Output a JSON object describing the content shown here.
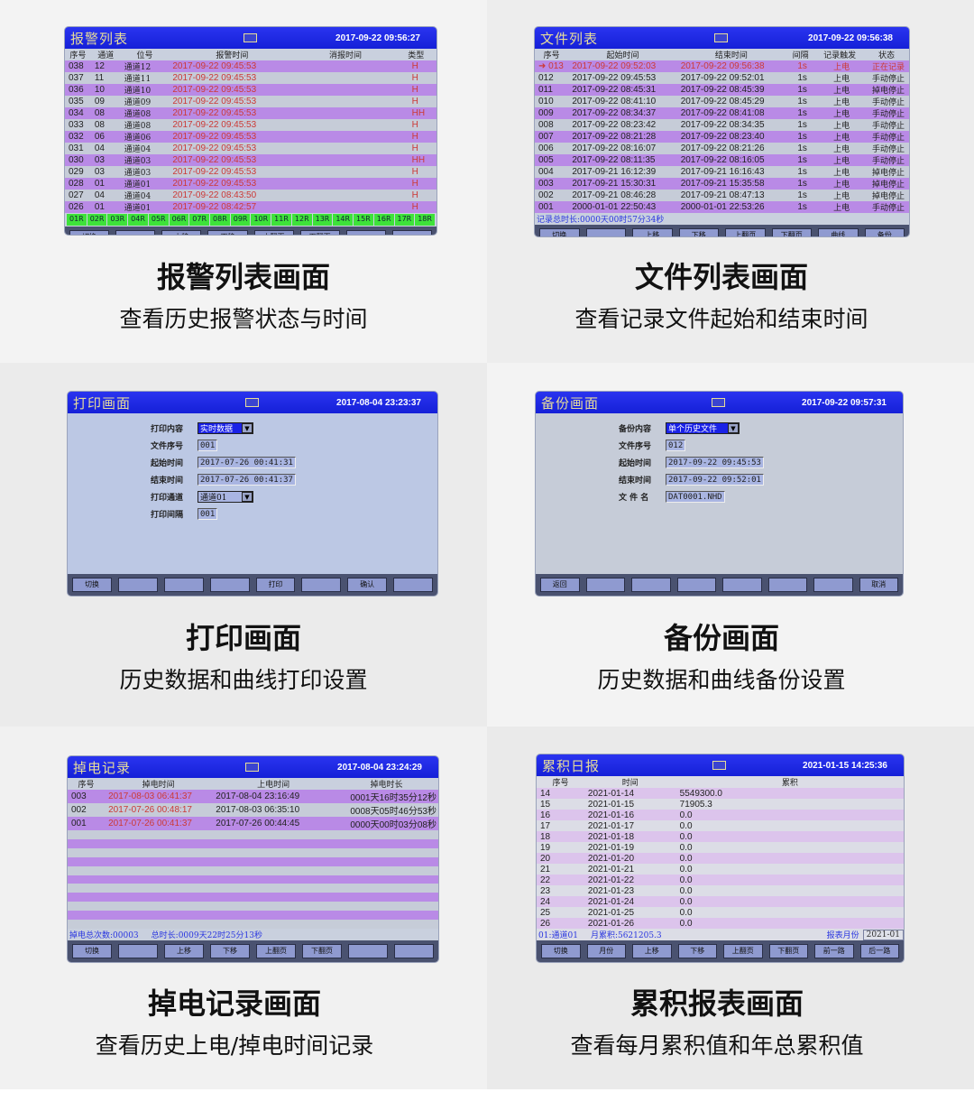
{
  "alarm_list": {
    "title": "报警列表",
    "datetime": "2017-09-22 09:56:27",
    "columns": [
      "序号",
      "通道",
      "位号",
      "报警时间",
      "消报时间",
      "类型"
    ],
    "rows": [
      [
        "038",
        "12",
        "通道12",
        "2017-09-22 09:45:53",
        "",
        "H"
      ],
      [
        "037",
        "11",
        "通道11",
        "2017-09-22 09:45:53",
        "",
        "H"
      ],
      [
        "036",
        "10",
        "通道10",
        "2017-09-22 09:45:53",
        "",
        "H"
      ],
      [
        "035",
        "09",
        "通道09",
        "2017-09-22 09:45:53",
        "",
        "H"
      ],
      [
        "034",
        "08",
        "通道08",
        "2017-09-22 09:45:53",
        "",
        "HH"
      ],
      [
        "033",
        "08",
        "通道08",
        "2017-09-22 09:45:53",
        "",
        "H"
      ],
      [
        "032",
        "06",
        "通道06",
        "2017-09-22 09:45:53",
        "",
        "H"
      ],
      [
        "031",
        "04",
        "通道04",
        "2017-09-22 09:45:53",
        "",
        "H"
      ],
      [
        "030",
        "03",
        "通道03",
        "2017-09-22 09:45:53",
        "",
        "HH"
      ],
      [
        "029",
        "03",
        "通道03",
        "2017-09-22 09:45:53",
        "",
        "H"
      ],
      [
        "028",
        "01",
        "通道01",
        "2017-09-22 09:45:53",
        "",
        "H"
      ],
      [
        "027",
        "04",
        "通道04",
        "2017-09-22 08:43:50",
        "",
        "H"
      ],
      [
        "026",
        "01",
        "通道01",
        "2017-09-22 08:42:57",
        "",
        "H"
      ]
    ],
    "channels": [
      "01R",
      "02R",
      "03R",
      "04R",
      "05R",
      "06R",
      "07R",
      "08R",
      "09R",
      "10R",
      "11R",
      "12R",
      "13R",
      "14R",
      "15R",
      "16R",
      "17R",
      "18R"
    ],
    "channel_color": "#3ee23a",
    "buttons": [
      "切换",
      "",
      "上移",
      "下移",
      "上翻页",
      "下翻页",
      "",
      ""
    ],
    "caption": {
      "title": "报警列表画面",
      "subtitle": "查看历史报警状态与时间"
    }
  },
  "file_list": {
    "title": "文件列表",
    "datetime": "2017-09-22 09:56:38",
    "columns": [
      "序号",
      "起始时间",
      "结束时间",
      "间隔",
      "记录触发",
      "状态"
    ],
    "rows": [
      [
        "➜ 013",
        "2017-09-22 09:52:03",
        "2017-09-22 09:56:38",
        "1s",
        "上电",
        "正在记录"
      ],
      [
        "012",
        "2017-09-22 09:45:53",
        "2017-09-22 09:52:01",
        "1s",
        "上电",
        "手动停止"
      ],
      [
        "011",
        "2017-09-22 08:45:31",
        "2017-09-22 08:45:39",
        "1s",
        "上电",
        "掉电停止"
      ],
      [
        "010",
        "2017-09-22 08:41:10",
        "2017-09-22 08:45:29",
        "1s",
        "上电",
        "手动停止"
      ],
      [
        "009",
        "2017-09-22 08:34:37",
        "2017-09-22 08:41:08",
        "1s",
        "上电",
        "手动停止"
      ],
      [
        "008",
        "2017-09-22 08:23:42",
        "2017-09-22 08:34:35",
        "1s",
        "上电",
        "手动停止"
      ],
      [
        "007",
        "2017-09-22 08:21:28",
        "2017-09-22 08:23:40",
        "1s",
        "上电",
        "手动停止"
      ],
      [
        "006",
        "2017-09-22 08:16:07",
        "2017-09-22 08:21:26",
        "1s",
        "上电",
        "手动停止"
      ],
      [
        "005",
        "2017-09-22 08:11:35",
        "2017-09-22 08:16:05",
        "1s",
        "上电",
        "手动停止"
      ],
      [
        "004",
        "2017-09-21 16:12:39",
        "2017-09-21 16:16:43",
        "1s",
        "上电",
        "掉电停止"
      ],
      [
        "003",
        "2017-09-21 15:30:31",
        "2017-09-21 15:35:58",
        "1s",
        "上电",
        "掉电停止"
      ],
      [
        "002",
        "2017-09-21 08:46:28",
        "2017-09-21 08:47:13",
        "1s",
        "上电",
        "掉电停止"
      ],
      [
        "001",
        "2000-01-01 22:50:43",
        "2000-01-01 22:53:26",
        "1s",
        "上电",
        "手动停止"
      ]
    ],
    "summary": "记录总时长:0000天00时57分34秒",
    "buttons": [
      "切换",
      "",
      "上移",
      "下移",
      "上翻页",
      "下翻页",
      "曲线",
      "备份"
    ],
    "caption": {
      "title": "文件列表画面",
      "subtitle": "查看记录文件起始和结束时间"
    }
  },
  "print": {
    "title": "打印画面",
    "datetime": "2017-08-04 23:23:37",
    "fields": [
      {
        "label": "打印内容",
        "value": "实时数据",
        "type": "select-active"
      },
      {
        "label": "文件序号",
        "value": "001",
        "type": "input"
      },
      {
        "label": "起始时间",
        "value": "2017-07-26 00:41:31",
        "type": "input"
      },
      {
        "label": "结束时间",
        "value": "2017-07-26 00:41:37",
        "type": "input"
      },
      {
        "label": "打印通道",
        "value": "通道01",
        "type": "select"
      },
      {
        "label": "打印间隔",
        "value": "001",
        "type": "input"
      }
    ],
    "buttons": [
      "切换",
      "",
      "",
      "",
      "打印",
      "",
      "确认",
      ""
    ],
    "caption": {
      "title": "打印画面",
      "subtitle": "历史数据和曲线打印设置"
    }
  },
  "backup": {
    "title": "备份画面",
    "datetime": "2017-09-22 09:57:31",
    "fields": [
      {
        "label": "备份内容",
        "value": "单个历史文件",
        "type": "select-active"
      },
      {
        "label": "文件序号",
        "value": "012",
        "type": "input"
      },
      {
        "label": "起始时间",
        "value": "2017-09-22 09:45:53",
        "type": "input"
      },
      {
        "label": "结束时间",
        "value": "2017-09-22 09:52:01",
        "type": "input"
      },
      {
        "label": "文 件 名",
        "value": "DAT0001.NHD",
        "type": "input"
      }
    ],
    "buttons": [
      "返回",
      "",
      "",
      "",
      "",
      "",
      "",
      "取消"
    ],
    "caption": {
      "title": "备份画面",
      "subtitle": "历史数据和曲线备份设置"
    }
  },
  "power_log": {
    "title": "掉电记录",
    "datetime": "2017-08-04 23:24:29",
    "columns": [
      "序号",
      "掉电时间",
      "上电时间",
      "掉电时长"
    ],
    "rows": [
      [
        "003",
        "2017-08-03 06:41:37",
        "2017-08-04 23:16:49",
        "0001天16时35分12秒"
      ],
      [
        "002",
        "2017-07-26 00:48:17",
        "2017-08-03 06:35:10",
        "0008天05时46分53秒"
      ],
      [
        "001",
        "2017-07-26 00:41:37",
        "2017-07-26 00:44:45",
        "0000天00时03分08秒"
      ],
      [
        "",
        "",
        "",
        ""
      ],
      [
        "",
        "",
        "",
        ""
      ],
      [
        "",
        "",
        "",
        ""
      ],
      [
        "",
        "",
        "",
        ""
      ],
      [
        "",
        "",
        "",
        ""
      ],
      [
        "",
        "",
        "",
        ""
      ],
      [
        "",
        "",
        "",
        ""
      ],
      [
        "",
        "",
        "",
        ""
      ],
      [
        "",
        "",
        "",
        ""
      ],
      [
        "",
        "",
        "",
        ""
      ],
      [
        "",
        "",
        "",
        ""
      ]
    ],
    "summary_count": "掉电总次数:00003",
    "summary_total": "总时长:0009天22时25分13秒",
    "buttons": [
      "切换",
      "",
      "上移",
      "下移",
      "上翻页",
      "下翻页",
      "",
      ""
    ],
    "caption": {
      "title": "掉电记录画面",
      "subtitle": "查看历史上电/掉电时间记录"
    }
  },
  "daily_report": {
    "title": "累积日报",
    "datetime": "2021-01-15 14:25:36",
    "columns": [
      "序号",
      "时间",
      "累积"
    ],
    "rows": [
      [
        "14",
        "2021-01-14",
        "5549300.0"
      ],
      [
        "15",
        "2021-01-15",
        "71905.3"
      ],
      [
        "16",
        "2021-01-16",
        "0.0"
      ],
      [
        "17",
        "2021-01-17",
        "0.0"
      ],
      [
        "18",
        "2021-01-18",
        "0.0"
      ],
      [
        "19",
        "2021-01-19",
        "0.0"
      ],
      [
        "20",
        "2021-01-20",
        "0.0"
      ],
      [
        "21",
        "2021-01-21",
        "0.0"
      ],
      [
        "22",
        "2021-01-22",
        "0.0"
      ],
      [
        "23",
        "2021-01-23",
        "0.0"
      ],
      [
        "24",
        "2021-01-24",
        "0.0"
      ],
      [
        "25",
        "2021-01-25",
        "0.0"
      ],
      [
        "26",
        "2021-01-26",
        "0.0"
      ]
    ],
    "channel": "01:通道01",
    "month_total": "月累积:5621205.3",
    "month_label": "报表月份",
    "month_value": "2021-01",
    "buttons": [
      "切换",
      "月份",
      "上移",
      "下移",
      "上翻页",
      "下翻页",
      "前一路",
      "后一路"
    ],
    "caption": {
      "title": "累积报表画面",
      "subtitle": "查看每月累积值和年总累积值"
    }
  },
  "colors": {
    "title_bar": "#1a22e6",
    "row_purple": "#b98ae6",
    "row_grey": "#c6ccd8",
    "alarm_red": "#cc3a36",
    "info_blue": "#2a36e0"
  }
}
